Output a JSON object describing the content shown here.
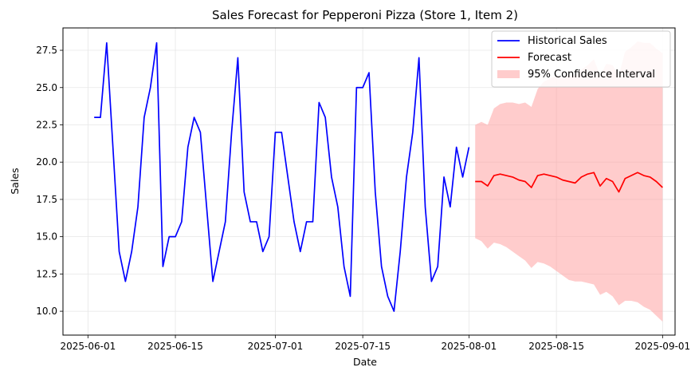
{
  "chart_data": {
    "type": "line",
    "title": "Sales Forecast for Pepperoni Pizza (Store 1, Item 2)",
    "xlabel": "Date",
    "ylabel": "Sales",
    "xlim": [
      "2025-05-28",
      "2025-09-03"
    ],
    "ylim": [
      8.4,
      29.0
    ],
    "x_ticks": [
      "2025-06-01",
      "2025-06-15",
      "2025-07-01",
      "2025-07-15",
      "2025-08-01",
      "2025-08-15",
      "2025-09-01"
    ],
    "y_ticks": [
      10.0,
      12.5,
      15.0,
      17.5,
      20.0,
      22.5,
      25.0,
      27.5
    ],
    "grid": true,
    "legend_position": "top-right",
    "colors": {
      "historical": "#0000ff",
      "forecast": "#ff0000",
      "ci_fill": "#ff9999"
    },
    "series": [
      {
        "name": "Historical Sales",
        "x_start": "2025-06-02",
        "values": [
          23,
          23,
          28,
          21,
          14,
          12,
          14,
          17,
          23,
          25,
          28,
          13,
          15,
          15,
          16,
          21,
          23,
          22,
          17,
          12,
          14,
          16,
          22,
          27,
          18,
          16,
          16,
          14,
          15,
          22,
          22,
          19,
          16,
          14,
          16,
          16,
          24,
          23,
          19,
          17,
          13,
          11,
          25,
          25,
          26,
          18,
          13,
          11,
          10,
          14,
          19,
          22,
          27,
          17,
          12,
          13,
          19,
          17,
          21,
          19,
          21
        ]
      },
      {
        "name": "Forecast",
        "x_start": "2025-08-02",
        "values": [
          18.7,
          18.7,
          18.4,
          19.1,
          19.2,
          19.1,
          19.0,
          18.8,
          18.7,
          18.3,
          19.1,
          19.2,
          19.1,
          19.0,
          18.8,
          18.7,
          18.6,
          19.0,
          19.2,
          19.3,
          18.4,
          18.9,
          18.7,
          18.0,
          18.9,
          19.1,
          19.3,
          19.1,
          19.0,
          18.7,
          18.3
        ]
      },
      {
        "name": "95% Confidence Interval",
        "x_start": "2025-08-02",
        "lower": [
          14.9,
          14.7,
          14.2,
          14.6,
          14.5,
          14.3,
          14.0,
          13.7,
          13.4,
          12.9,
          13.3,
          13.2,
          13.0,
          12.7,
          12.4,
          12.1,
          12.0,
          12.0,
          11.9,
          11.8,
          11.1,
          11.3,
          11.0,
          10.4,
          10.7,
          10.7,
          10.6,
          10.3,
          10.1,
          9.7,
          9.3
        ],
        "upper": [
          22.5,
          22.7,
          22.5,
          23.6,
          23.9,
          24.0,
          24.0,
          23.9,
          24.0,
          23.7,
          24.9,
          25.4,
          25.6,
          25.8,
          25.6,
          25.8,
          25.8,
          26.2,
          26.5,
          26.9,
          25.8,
          26.6,
          26.5,
          25.8,
          27.4,
          27.7,
          28.1,
          28.0,
          28.0,
          27.6,
          27.3
        ]
      }
    ]
  }
}
